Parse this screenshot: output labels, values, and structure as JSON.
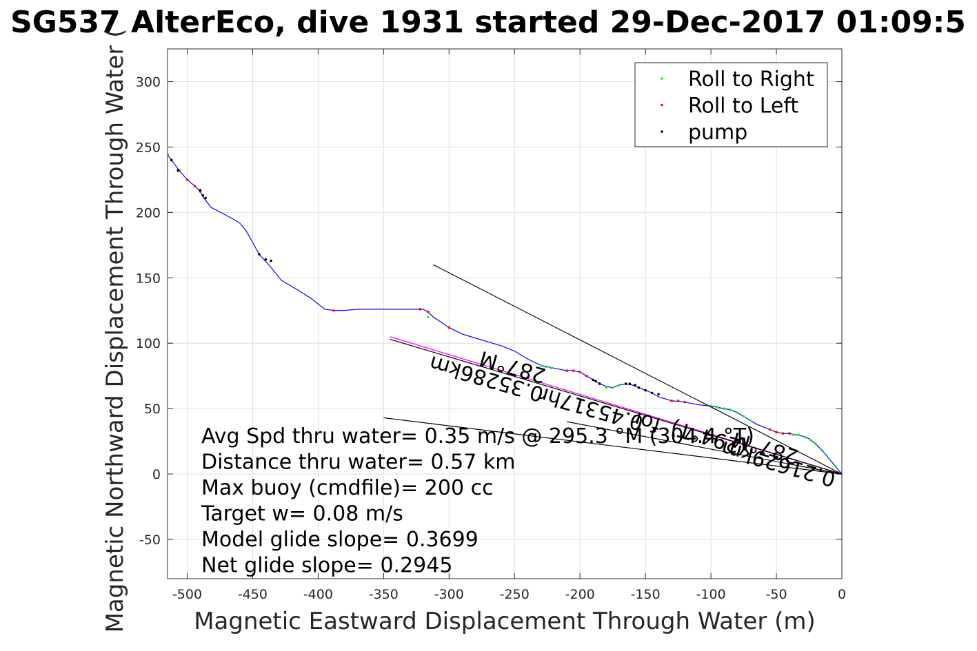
{
  "chart_data": {
    "type": "line",
    "title": "SG537 AlterEco, dive 1931 started 29-Dec-2017 01:09:5",
    "xlabel": "Magnetic Eastward Displacement Through Water (m)",
    "ylabel": "Magnetic Northward Displacement Through Water (",
    "xlim": [
      -515,
      0
    ],
    "ylim": [
      -80,
      325
    ],
    "xticks": [
      -500,
      -450,
      -400,
      -350,
      -300,
      -250,
      -200,
      -150,
      -100,
      -50,
      0
    ],
    "yticks": [
      -50,
      0,
      50,
      100,
      150,
      200,
      250,
      300
    ],
    "grid": true,
    "legend_position": "top-right",
    "legend": [
      {
        "label": "Roll to Right",
        "color": "#00ff00"
      },
      {
        "label": "Roll to Left",
        "color": "#ff0000"
      },
      {
        "label": "pump",
        "color": "#000000"
      }
    ],
    "track": {
      "color": "#0000ff",
      "x": [
        0,
        -5,
        -10,
        -15,
        -20,
        -25,
        -30,
        -35,
        -40,
        -45,
        -50,
        -55,
        -60,
        -65,
        -70,
        -75,
        -80,
        -85,
        -90,
        -95,
        -100,
        -110,
        -120,
        -130,
        -140,
        -145,
        -150,
        -155,
        -160,
        -165,
        -170,
        -175,
        -180,
        -185,
        -190,
        -195,
        -200,
        -205,
        -210,
        -215,
        -220,
        -225,
        -230,
        -240,
        -250,
        -260,
        -270,
        -280,
        -290,
        -300,
        -306,
        -312,
        -316,
        -320,
        -330,
        -340,
        -350,
        -360,
        -370,
        -380,
        -388,
        -395,
        -405,
        -416,
        -428,
        -436,
        -445,
        -455,
        -460,
        -465,
        -482,
        -488,
        -490,
        -494,
        -500,
        -506,
        -512,
        -515
      ],
      "y": [
        0,
        6,
        12,
        18,
        23,
        27,
        29,
        30,
        31,
        31,
        32,
        34,
        36,
        38,
        41,
        44,
        47,
        49,
        50,
        51,
        52,
        53,
        55,
        56,
        59,
        62,
        64,
        66,
        68,
        69,
        68,
        66,
        67,
        69,
        72,
        75,
        78,
        79,
        79,
        80,
        81,
        82,
        83,
        88,
        94,
        98,
        101,
        104,
        107,
        112,
        116,
        120,
        124,
        126,
        126,
        126,
        126,
        126,
        126,
        125,
        125,
        126,
        134,
        141,
        148,
        158,
        168,
        186,
        192,
        195,
        204,
        212,
        216,
        220,
        225,
        232,
        240,
        244
      ]
    },
    "roll_right_markers": {
      "color": "#00ff00",
      "x": [
        -5,
        -10,
        -15,
        -20,
        -24,
        -28,
        -33,
        -37,
        -70,
        -75,
        -80,
        -85,
        -90,
        -95,
        -100,
        -170,
        -175,
        -180,
        -222,
        -226,
        -230,
        -316
      ],
      "y": [
        6,
        12,
        18,
        23,
        26,
        28,
        30,
        30,
        41,
        44,
        47,
        49,
        50,
        51,
        52,
        68,
        66,
        66,
        81,
        82,
        83,
        120
      ]
    },
    "roll_left_markers": {
      "color": "#ff0000",
      "x": [
        -40,
        -45,
        -50,
        -55,
        -120,
        -125,
        -130,
        -195,
        -200,
        -205,
        -210,
        -300,
        -316,
        -322,
        -388,
        -490,
        -494,
        -500,
        -506,
        -512,
        -515
      ],
      "y": [
        31,
        31,
        32,
        34,
        55,
        56,
        56,
        75,
        78,
        79,
        79,
        112,
        124,
        126,
        125,
        216,
        220,
        225,
        232,
        240,
        244
      ]
    },
    "pump_markers": {
      "color": "#000000",
      "x": [
        -140,
        -145,
        -150,
        -155,
        -158,
        -162,
        -165,
        -185,
        -188,
        -190,
        -436,
        -440,
        -445,
        -486,
        -488,
        -490,
        -507,
        -512
      ],
      "y": [
        61,
        62,
        64,
        66,
        68,
        69,
        69,
        69,
        71,
        72,
        163,
        164,
        168,
        211,
        213,
        217,
        232,
        240
      ]
    },
    "model_track": {
      "color": "#ff00ff",
      "x": [
        0,
        -345
      ],
      "y": [
        0,
        105
      ]
    },
    "vectors": [
      {
        "color": "#000000",
        "x": [
          0,
          -312
        ],
        "y": [
          0,
          160
        ]
      },
      {
        "color": "#000000",
        "x": [
          0,
          -350
        ],
        "y": [
          0,
          43
        ]
      },
      {
        "color": "#000000",
        "x": [
          0,
          -345
        ],
        "y": [
          0,
          103
        ]
      },
      {
        "color": "#000000",
        "x": [
          0,
          -210
        ],
        "y": [
          0,
          40
        ]
      }
    ],
    "rotated_labels": [
      {
        "text": "287°M",
        "x": -250,
        "y": 87,
        "angle": 196
      },
      {
        "text": "0.35286km",
        "x": -270,
        "y": 78,
        "angle": 196
      },
      {
        "text": "0.45317hr",
        "x": -190,
        "y": 55,
        "angle": 196
      },
      {
        "text": "for",
        "x": -148,
        "y": 45,
        "angle": 196
      },
      {
        "text": "0.21629km",
        "x": -47,
        "y": 13,
        "angle": 196
      },
      {
        "text": "287°M",
        "x": -57,
        "y": 25,
        "angle": 196
      },
      {
        "text": "(294°T)",
        "x": -100,
        "y": 33,
        "angle": 196
      }
    ],
    "annotations": [
      "Avg Spd thru water=  0.35 m/s @ 295.3  °M (304.4 °T)",
      "Distance thru water=  0.57 km",
      "Max buoy (cmdfile)= 200 cc",
      "Target w= 0.08 m/s",
      "Model glide slope= 0.3699",
      "Net glide slope= 0.2945"
    ]
  }
}
